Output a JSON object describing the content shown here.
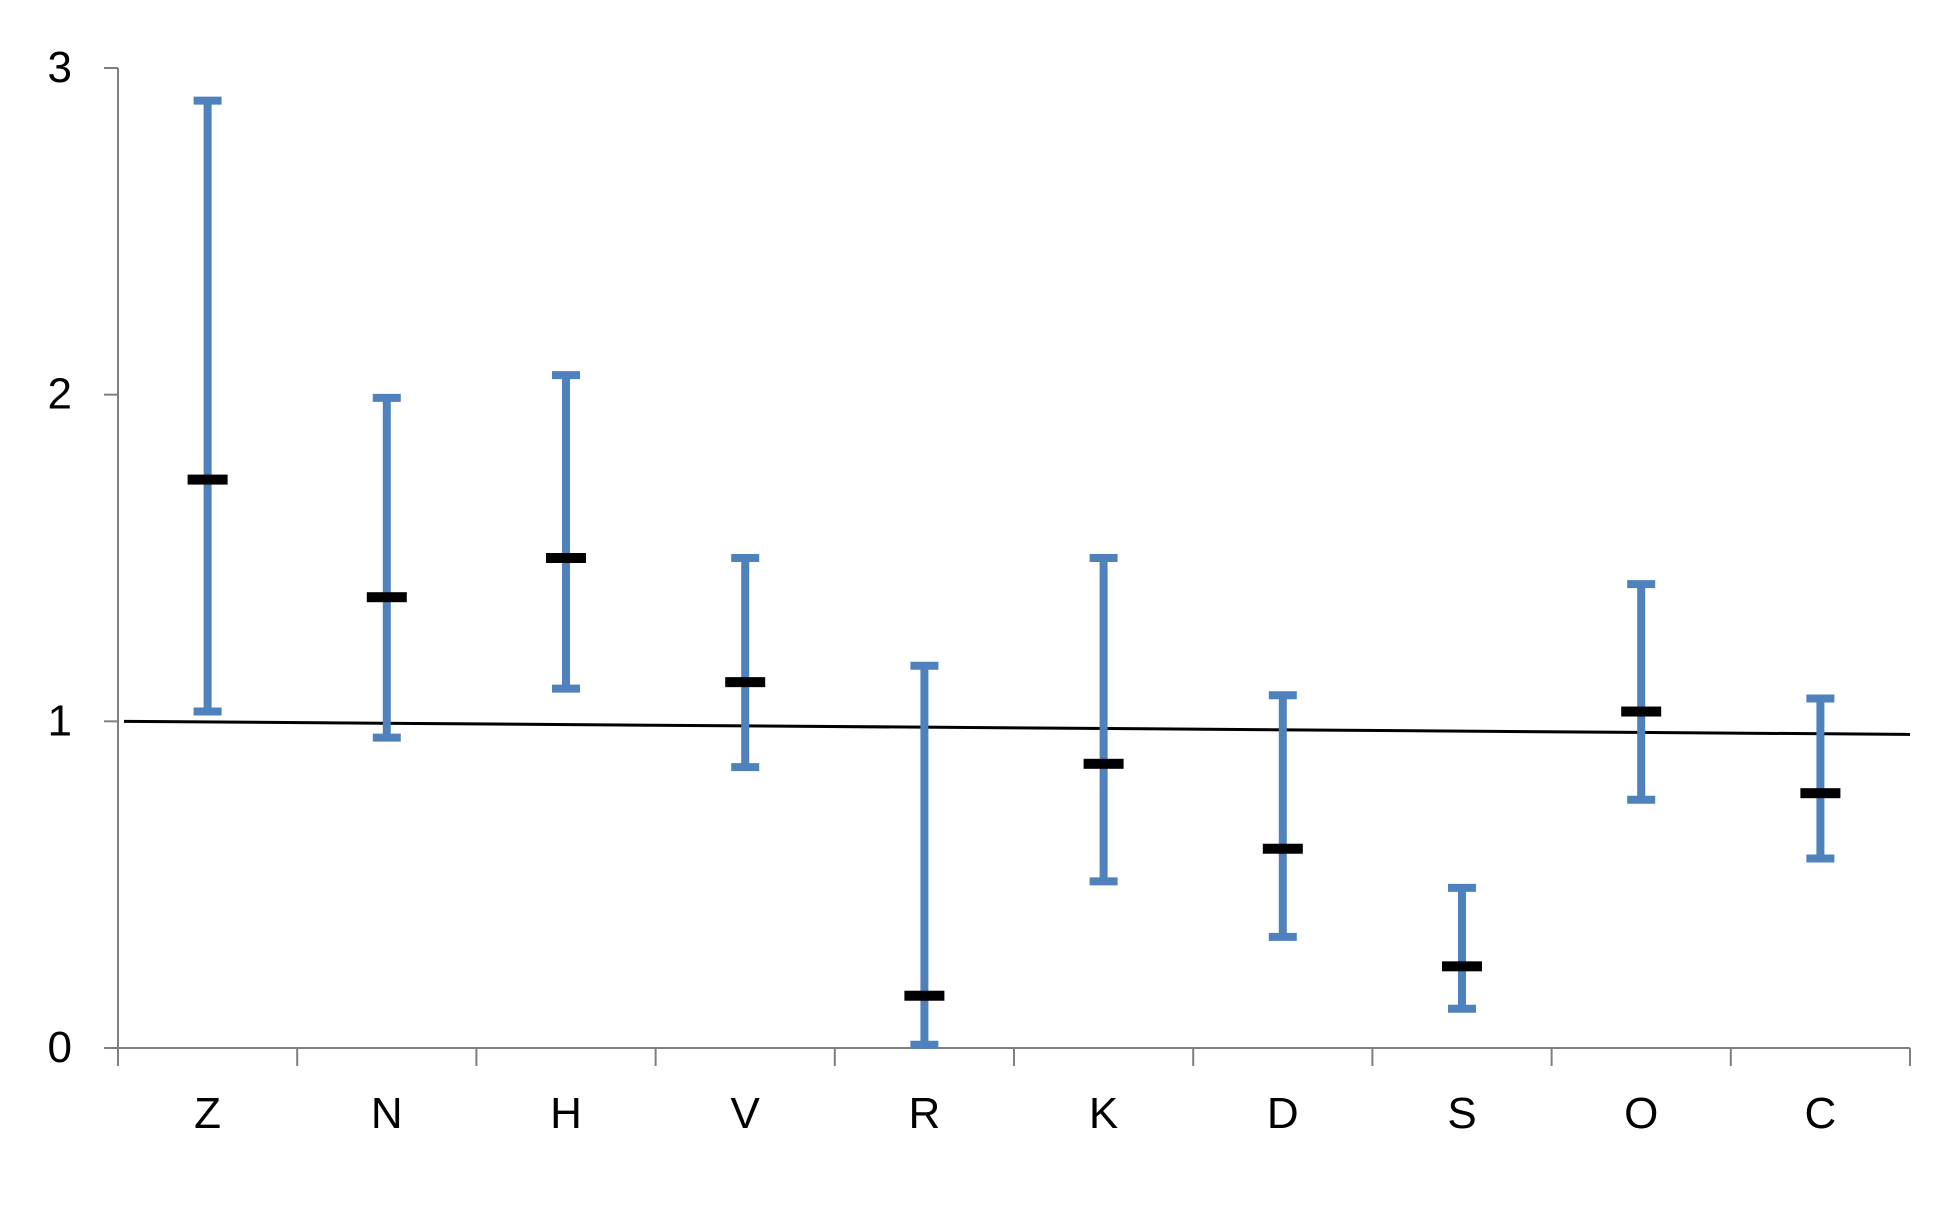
{
  "chart_data": {
    "type": "errorbar",
    "title": "",
    "xlabel": "",
    "ylabel": "",
    "categories": [
      "Z",
      "N",
      "H",
      "V",
      "R",
      "K",
      "D",
      "S",
      "O",
      "C"
    ],
    "y_ticks": [
      "0",
      "1",
      "2",
      "3"
    ],
    "ylim": [
      0,
      3
    ],
    "grid": false,
    "series": [
      {
        "values": [
          1.74,
          1.38,
          1.5,
          1.12,
          0.16,
          0.87,
          0.61,
          0.25,
          1.03,
          0.78
        ],
        "lower": [
          1.03,
          0.95,
          1.1,
          0.86,
          0.01,
          0.51,
          0.34,
          0.12,
          0.76,
          0.58
        ],
        "upper": [
          2.9,
          1.99,
          2.06,
          1.5,
          1.17,
          1.5,
          1.08,
          0.49,
          1.42,
          1.07
        ]
      }
    ],
    "reference_line": {
      "start": 1.0,
      "end": 0.96
    },
    "colors": {
      "error_bar": "#4F81BD",
      "point_marker": "#000000",
      "axis": "#7f7f7f",
      "reference_line": "#000000"
    }
  }
}
